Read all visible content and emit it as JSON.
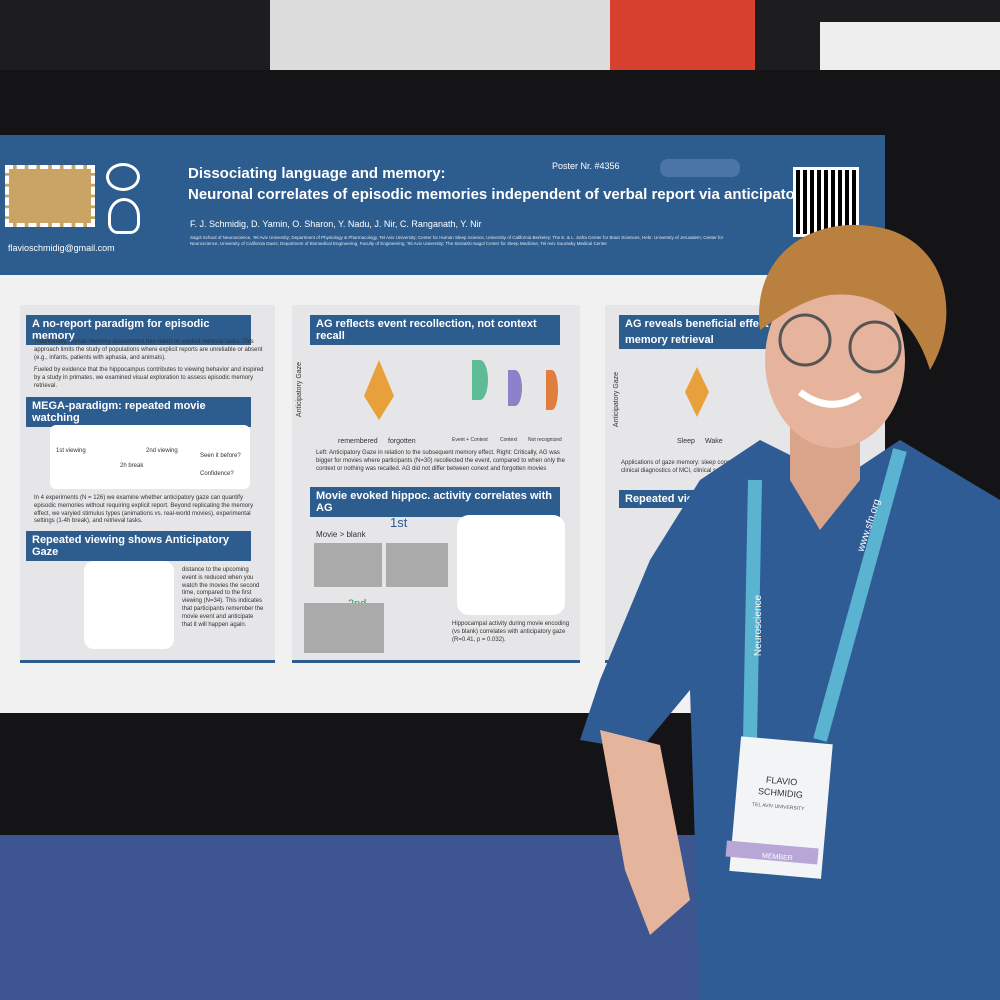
{
  "poster": {
    "title": [
      "Dissociating language and memory:",
      "Neuronal correlates of episodic memories independent of verbal report via  anticipatory gaze"
    ],
    "poster_number": "Poster Nr. #4356",
    "authors": "F. J. Schmidig, D. Yamin, O. Sharon, Y. Nadu, J. Nir, C. Ranganath, Y. Nir",
    "affiliations": "Sagol School of Neuroscience, Tel Aviv University; Department of Physiology & Pharmacology, Tel Aviv University; Center for Human Sleep Science, University of California Berkeley; The E. & L. Safra Center for Brain Sciences, Hebr. University of Jerusalem; Center for Neuroscience, University of California Davis; Department of Biomedical Engineering, Faculty of Engineering, Tel Aviv University; The Sieratzki-Sagol Center for Sleep Medicine, Tel Aviv Sourasky Medical Center",
    "email": "flavioschmidig@gmail.com",
    "panel1": {
      "heading1": "A no-report paradigm for episodic memory",
      "bullets": [
        "Traditionally, human memory assessment has relied on explicit retrieval tasks. This approach limits the study of populations where explicit reports are unreliable or absent (e.g., infants, patients with aphasia, and animals).",
        "Fueled by evidence that the hippocampus contributes to viewing behavior and inspired by a study in primates, we examined visual exploration to assess episodic memory retrieval."
      ],
      "heading2": "MEGA-paradigm: repeated movie watching",
      "paradigm_labels": [
        "1st viewing",
        "2h break",
        "2nd viewing",
        "Seen it before?",
        "Confidence?"
      ],
      "text": "In 4 experiments (N = 126) we examine whether anticipatory gaze can quantify episodic memories without requiring explicit report. Beyond replicating the memory effect, we varyied stimulus types (animations vs. real-world movies), experimental settings (1-4h break), and retrieval tasks.",
      "heading3": "Repeated viewing shows Anticipatory Gaze",
      "text2": "distance to the upcoming event is reduced when you watch the movies the second time, compared to the first viewing (N=34). This indicates that participants remember the movie event and anticipate that it will happen again."
    },
    "panel2": {
      "heading1": "AG reflects event recollection, not context recall",
      "axis_label": "Anticipatory Gaze",
      "groups": [
        "remembered",
        "forgotten"
      ],
      "groups2": [
        "Event + Context",
        "Context",
        "Not recognized"
      ],
      "caption1": "Left: Anticipatory Gaze in relation to the subsequent memory effect. Right: Critically, AG was bigger for movies where participants (N=30) recollected the event, compared to when only the context or nothing was recalled. AG did not differ between conext and forgotten movies",
      "heading2": "Movie evoked hippoc. activity correlates with AG",
      "contrast": "Movie > blank",
      "viewings": [
        "1st",
        "2nd"
      ],
      "caption2": "Hippocampal activity during movie encoding (vs blank) correlates with anticipatory gaze (R=0.41, p = 0.032)."
    },
    "panel3": {
      "heading1": "AG reveals beneficial effect",
      "heading1b": "memory retrieval",
      "axis_label": "Anticipatory Gaze",
      "groups": [
        "Sleep",
        "Wake"
      ],
      "caption": "Applications of gaze memory: sleep consolidation, pre-clinical diagnostics of MCI, clinical samples",
      "heading2": "Repeated viewi"
    }
  },
  "badge": {
    "name": [
      "FLAVIO",
      "SCHMIDIG"
    ],
    "affiliation": "TEL AVIV UNIVERSITY",
    "role": "MEMBER"
  },
  "lanyard": [
    "www.sfn.org",
    "Neuroscience"
  ]
}
